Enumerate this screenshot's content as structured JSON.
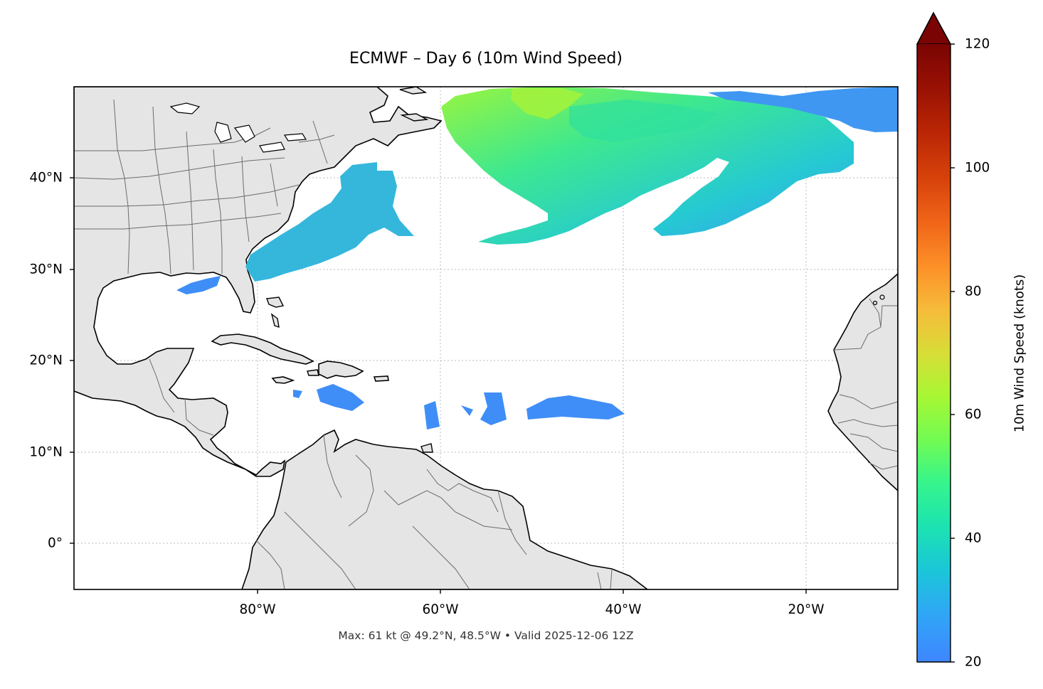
{
  "title": "ECMWF – Day 6 (10m Wind Speed)",
  "footer": "Max: 61 kt @ 49.2°N, 48.5°W • Valid 2025-12-06 12Z",
  "map": {
    "extent": {
      "lon_min": -100,
      "lon_max": -10,
      "lat_min": -5,
      "lat_max": 50
    },
    "lat_ticks": [
      {
        "value": 40,
        "label": "40°N"
      },
      {
        "value": 30,
        "label": "30°N"
      },
      {
        "value": 20,
        "label": "20°N"
      },
      {
        "value": 10,
        "label": "10°N"
      },
      {
        "value": 0,
        "label": "0°"
      }
    ],
    "lon_ticks": [
      {
        "value": -80,
        "label": "80°W"
      },
      {
        "value": -60,
        "label": "60°W"
      },
      {
        "value": -40,
        "label": "40°W"
      },
      {
        "value": -20,
        "label": "20°W"
      }
    ],
    "gridlines": "dotted",
    "land_color": "#e5e5e5",
    "ocean_color": "#ffffff",
    "max_point": {
      "speed_kt": 61,
      "lat": 49.2,
      "lon": -48.5
    }
  },
  "colorbar": {
    "label": "10m Wind Speed (knots)",
    "min": 20,
    "max": 120,
    "extend": "max",
    "colormap": "turbo",
    "ticks": [
      {
        "value": 20,
        "label": "20"
      },
      {
        "value": 40,
        "label": "40"
      },
      {
        "value": 60,
        "label": "60"
      },
      {
        "value": 80,
        "label": "80"
      },
      {
        "value": 100,
        "label": "100"
      },
      {
        "value": 120,
        "label": "120"
      }
    ]
  },
  "colors": {
    "wind_low": "#3f8ef7",
    "wind_mid": "#22c3d8",
    "wind_high": "#a4f23a",
    "extend_arrow": "#7a0403"
  }
}
